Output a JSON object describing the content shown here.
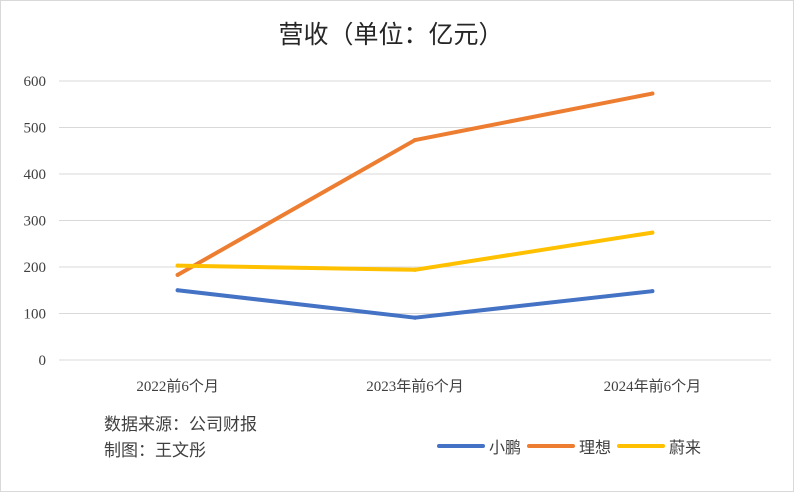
{
  "chart_data": {
    "type": "line",
    "title": "营收（单位：亿元）",
    "categories": [
      "2022前6个月",
      "2023年前6个月",
      "2024年前6个月"
    ],
    "ylim": [
      0,
      600
    ],
    "yticks": [
      "0",
      "100",
      "200",
      "300",
      "400",
      "500",
      "600"
    ],
    "series": [
      {
        "name": "小鹏",
        "color": "#4472c4",
        "values": [
          150,
          91,
          148
        ]
      },
      {
        "name": "理想",
        "color": "#ed7d31",
        "values": [
          183,
          473,
          573
        ]
      },
      {
        "name": "蔚来",
        "color": "#ffc000",
        "values": [
          203,
          194,
          274
        ]
      }
    ],
    "legend_position": "bottom-right"
  },
  "notes": {
    "source": "数据来源：公司财报",
    "author": "制图：王文彤"
  }
}
